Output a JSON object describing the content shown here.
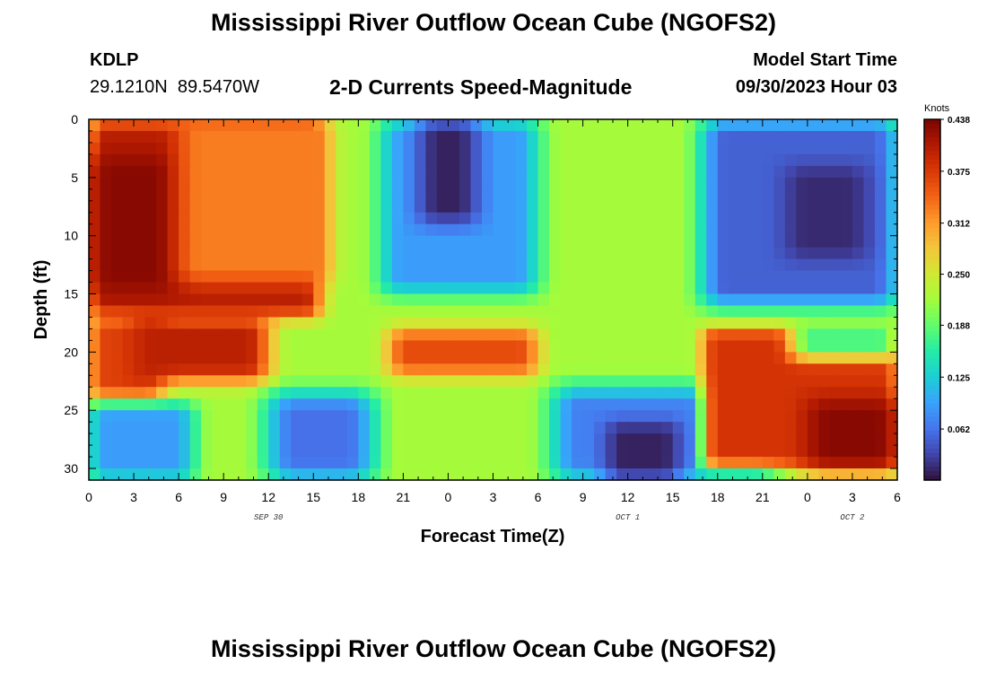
{
  "header": {
    "title": "Mississippi River Outflow Ocean Cube (NGOFS2)",
    "station": "KDLP",
    "coords": "29.1210N  89.5470W",
    "subtitle": "2-D Currents Speed-Magnitude",
    "model_start_label": "Model Start Time",
    "model_start_value": "09/30/2023 Hour 03"
  },
  "footer": {
    "title": "Mississippi River Outflow Ocean Cube (NGOFS2)"
  },
  "chart_data": {
    "type": "heatmap",
    "xlabel": "Forecast Time(Z)",
    "ylabel": "Depth (ft)",
    "x_range_hours": [
      0,
      54
    ],
    "y_range_ft": [
      0,
      31
    ],
    "x_tick_labels": [
      "0",
      "3",
      "6",
      "9",
      "12",
      "15",
      "18",
      "21",
      "0",
      "3",
      "6",
      "9",
      "12",
      "15",
      "18",
      "21",
      "0",
      "3",
      "6"
    ],
    "y_ticks": [
      0,
      5,
      10,
      15,
      20,
      25,
      30
    ],
    "date_labels": [
      {
        "text": "SEP 30",
        "hour": 12
      },
      {
        "text": "OCT 1",
        "hour": 36
      },
      {
        "text": "OCT 2",
        "hour": 51
      }
    ],
    "colorbar": {
      "unit": "Knots",
      "min": 0,
      "max": 0.438,
      "tick_labels": [
        "0.438",
        "0.375",
        "0.312",
        "0.250",
        "0.188",
        "0.125",
        "0.062"
      ],
      "tick_values": [
        0.438,
        0.375,
        0.312,
        0.25,
        0.188,
        0.125,
        0.062
      ]
    },
    "color_scale": [
      "#30123b",
      "#4145ab",
      "#4675ed",
      "#39a2fc",
      "#1bcfd4",
      "#24eca6",
      "#61fc6c",
      "#a4fc3b",
      "#d1e834",
      "#f3c63a",
      "#fe9b2d",
      "#f36315",
      "#d93806",
      "#b11901",
      "#7a0402"
    ],
    "features": [
      {
        "kind": "base",
        "value": 0.22
      },
      {
        "kind": "region",
        "x": [
          0,
          15.5
        ],
        "y": [
          0,
          17
        ],
        "value": 0.4,
        "edge": 1.2
      },
      {
        "kind": "region",
        "x": [
          0,
          6
        ],
        "y": [
          3,
          15
        ],
        "value": 0.43,
        "edge": 2.0
      },
      {
        "kind": "region",
        "x": [
          6,
          16
        ],
        "y": [
          0,
          14
        ],
        "value": 0.33,
        "edge": 1.5
      },
      {
        "kind": "region",
        "x": [
          0,
          5
        ],
        "y": [
          17,
          24
        ],
        "value": 0.37,
        "edge": 1.3
      },
      {
        "kind": "region",
        "x": [
          3,
          12
        ],
        "y": [
          17,
          22.5
        ],
        "value": 0.4,
        "edge": 1.5
      },
      {
        "kind": "region",
        "x": [
          0,
          7
        ],
        "y": [
          24.5,
          31
        ],
        "value": 0.09,
        "edge": 1.3
      },
      {
        "kind": "region",
        "x": [
          12,
          19
        ],
        "y": [
          23.5,
          31
        ],
        "value": 0.06,
        "edge": 1.8
      },
      {
        "kind": "region",
        "x": [
          19.5,
          30
        ],
        "y": [
          0,
          15
        ],
        "value": 0.09,
        "edge": 1.5
      },
      {
        "kind": "region",
        "x": [
          22,
          26
        ],
        "y": [
          0,
          9
        ],
        "value": 0.01,
        "edge": 1.5
      },
      {
        "kind": "region",
        "x": [
          20,
          30
        ],
        "y": [
          18,
          22
        ],
        "value": 0.36,
        "edge": 1.3
      },
      {
        "kind": "region",
        "x": [
          31,
          46
        ],
        "y": [
          23,
          31
        ],
        "value": 0.07,
        "edge": 1.8
      },
      {
        "kind": "region",
        "x": [
          34.5,
          39.5
        ],
        "y": [
          26,
          31
        ],
        "value": 0.01,
        "edge": 1.3
      },
      {
        "kind": "region",
        "x": [
          41,
          54
        ],
        "y": [
          0,
          16
        ],
        "value": 0.05,
        "edge": 1.6
      },
      {
        "kind": "region",
        "x": [
          46.5,
          52
        ],
        "y": [
          4,
          12
        ],
        "value": 0.015,
        "edge": 1.5
      },
      {
        "kind": "region",
        "x": [
          41,
          54
        ],
        "y": [
          18,
          30
        ],
        "value": 0.38,
        "edge": 1.0
      },
      {
        "kind": "region",
        "x": [
          47,
          54
        ],
        "y": [
          17.5,
          20.5
        ],
        "value": 0.17,
        "edge": 1.3
      },
      {
        "kind": "region",
        "x": [
          48,
          54
        ],
        "y": [
          24,
          30
        ],
        "value": 0.43,
        "edge": 1.6
      }
    ],
    "grid": false
  }
}
